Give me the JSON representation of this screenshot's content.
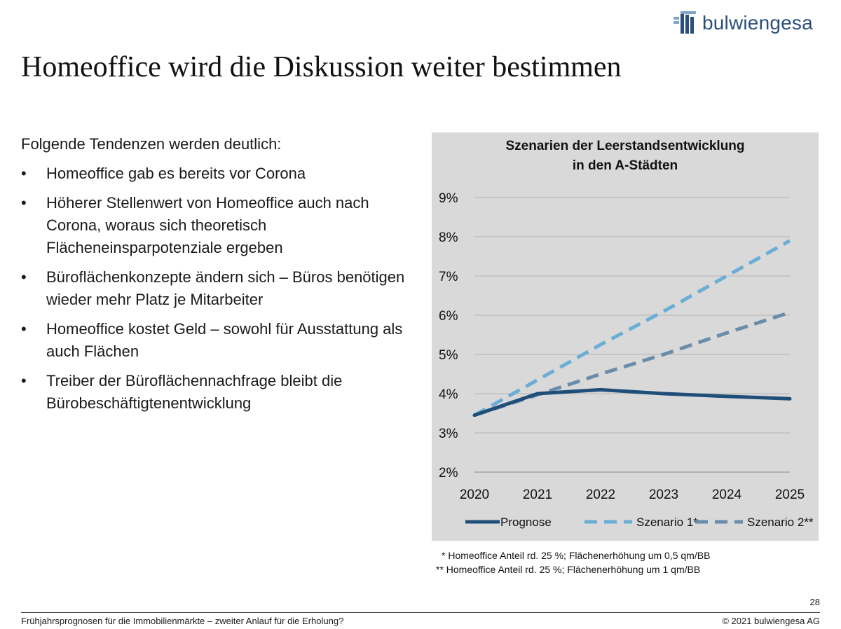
{
  "header": {
    "logo_text": "bulwiengesa",
    "title": "Homeoffice wird die Diskussion weiter bestimmen"
  },
  "content": {
    "intro": "Folgende Tendenzen werden deutlich:",
    "bullet_symbol": "•",
    "bullets": [
      "Homeoffice gab es bereits vor Corona",
      "Höherer Stellenwert von Homeoffice auch nach Corona, woraus sich theoretisch Flächeneinsparpotenziale ergeben",
      "Büroflächenkonzepte ändern sich – Büros benötigen wieder mehr Platz je Mitarbeiter",
      "Homeoffice kostet Geld – sowohl für Ausstattung als auch Flächen",
      "Treiber der Büroflächennachfrage bleibt die Bürobeschäftigtenentwicklung"
    ]
  },
  "chart_data": {
    "type": "line",
    "title": "Szenarien der Leerstandsentwicklung in den A-Städten",
    "title_lines": [
      "Szenarien der Leerstandsentwicklung",
      "in den A-Städten"
    ],
    "x": [
      "2020",
      "2021",
      "2022",
      "2023",
      "2024",
      "2025"
    ],
    "ylim": [
      2,
      9
    ],
    "yticks": [
      "2%",
      "3%",
      "4%",
      "5%",
      "6%",
      "7%",
      "8%",
      "9%"
    ],
    "grid": true,
    "legend_position": "bottom",
    "series": [
      {
        "name": "Prognose",
        "values": [
          3.45,
          4.0,
          4.1,
          4.0,
          3.93,
          3.87
        ],
        "color": "#1f4e79",
        "style": "solid"
      },
      {
        "name": "Szenario 1*",
        "values": [
          3.45,
          4.35,
          5.25,
          6.1,
          7.0,
          7.9
        ],
        "color": "#6aaed6",
        "style": "dashed"
      },
      {
        "name": "Szenario 2**",
        "values": [
          3.45,
          3.97,
          4.5,
          5.0,
          5.55,
          6.07
        ],
        "color": "#6a8cab",
        "style": "dashed"
      }
    ],
    "background": "#d9d9d9",
    "gridline_color": "#b3b3b3"
  },
  "footnotes": [
    "*  Homeoffice Anteil rd.  25 %; Flächenerhöhung um 0,5 qm/BB",
    "** Homeoffice Anteil rd.  25 %; Flächenerhöhung um 1 qm/BB"
  ],
  "footer": {
    "page_number": "28",
    "left": "Frühjahrsprognosen für die Immobilienmärkte – zweiter Anlauf für die Erholung?",
    "right": "© 2021 bulwiengesa AG"
  }
}
